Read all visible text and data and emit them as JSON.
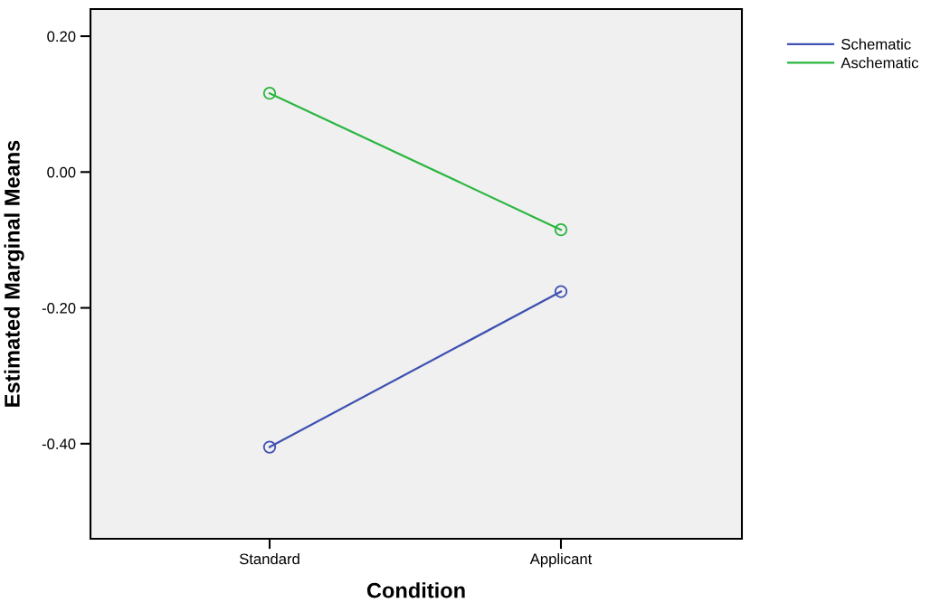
{
  "chart_data": {
    "type": "line",
    "xlabel": "Condition",
    "ylabel": "Estimated Marginal Means",
    "categories": [
      "Standard",
      "Applicant"
    ],
    "series": [
      {
        "name": "Schematic",
        "color": "#3f51b1",
        "values": [
          -0.405,
          -0.176
        ]
      },
      {
        "name": "Aschematic",
        "color": "#2ab640",
        "values": [
          0.116,
          -0.085
        ]
      }
    ],
    "ylim": [
      -0.54,
      0.24
    ],
    "yticks": [
      {
        "value": -0.4,
        "label": "-0.40"
      },
      {
        "value": -0.2,
        "label": "-0.20"
      },
      {
        "value": 0,
        "label": "0.00"
      },
      {
        "value": 0.2,
        "label": "0.20"
      }
    ],
    "marker": "circle",
    "line_style": "solid",
    "grid": false,
    "legend": "top right"
  }
}
